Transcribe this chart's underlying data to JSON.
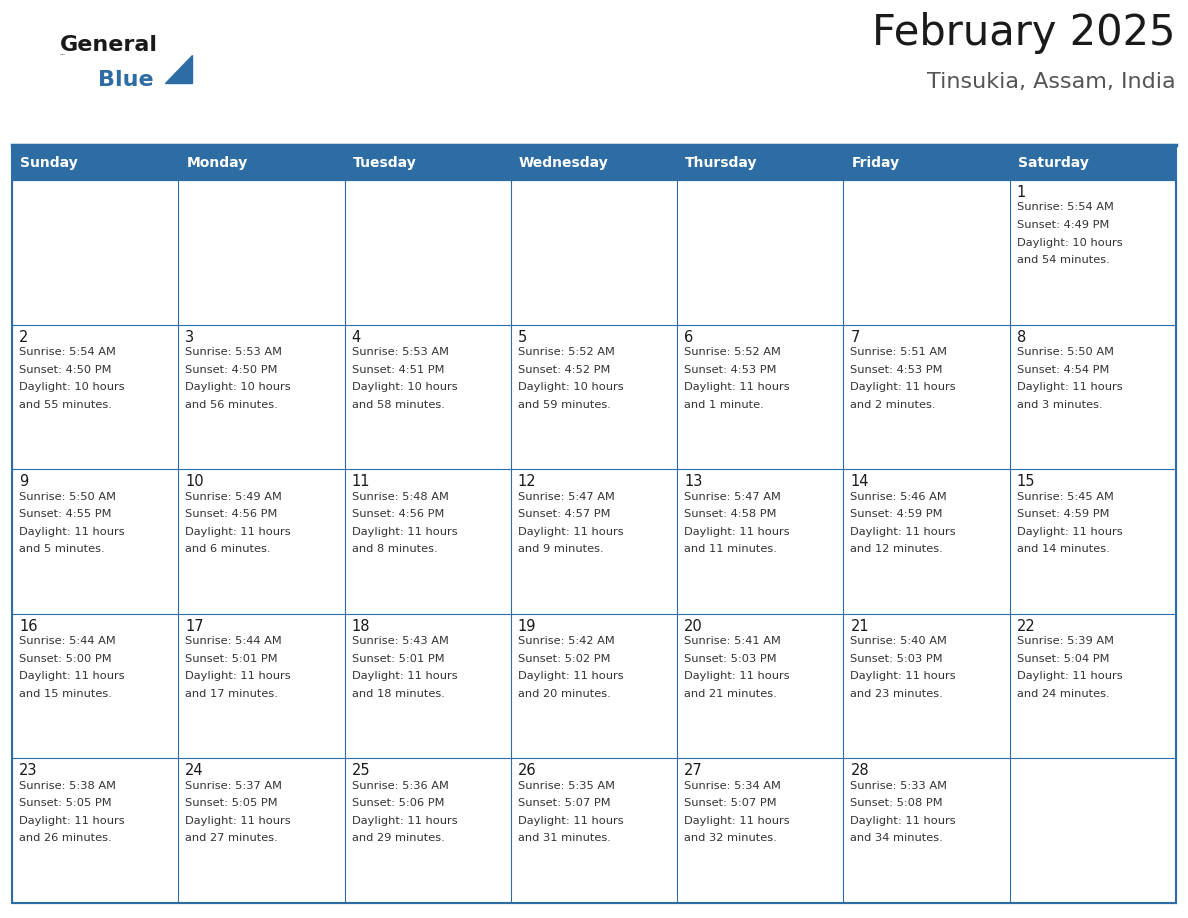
{
  "title": "February 2025",
  "subtitle": "Tinsukia, Assam, India",
  "header_color": "#2e6da4",
  "header_text_color": "#ffffff",
  "border_color": "#2e6da4",
  "text_color": "#333333",
  "day_number_color": "#1a1a1a",
  "cell_alt_color": "#f0f4f8",
  "day_headers": [
    "Sunday",
    "Monday",
    "Tuesday",
    "Wednesday",
    "Thursday",
    "Friday",
    "Saturday"
  ],
  "days": [
    {
      "day": 1,
      "col": 6,
      "row": 0,
      "sunrise": "5:54 AM",
      "sunset": "4:49 PM",
      "daylight_line1": "Daylight: 10 hours",
      "daylight_line2": "and 54 minutes."
    },
    {
      "day": 2,
      "col": 0,
      "row": 1,
      "sunrise": "5:54 AM",
      "sunset": "4:50 PM",
      "daylight_line1": "Daylight: 10 hours",
      "daylight_line2": "and 55 minutes."
    },
    {
      "day": 3,
      "col": 1,
      "row": 1,
      "sunrise": "5:53 AM",
      "sunset": "4:50 PM",
      "daylight_line1": "Daylight: 10 hours",
      "daylight_line2": "and 56 minutes."
    },
    {
      "day": 4,
      "col": 2,
      "row": 1,
      "sunrise": "5:53 AM",
      "sunset": "4:51 PM",
      "daylight_line1": "Daylight: 10 hours",
      "daylight_line2": "and 58 minutes."
    },
    {
      "day": 5,
      "col": 3,
      "row": 1,
      "sunrise": "5:52 AM",
      "sunset": "4:52 PM",
      "daylight_line1": "Daylight: 10 hours",
      "daylight_line2": "and 59 minutes."
    },
    {
      "day": 6,
      "col": 4,
      "row": 1,
      "sunrise": "5:52 AM",
      "sunset": "4:53 PM",
      "daylight_line1": "Daylight: 11 hours",
      "daylight_line2": "and 1 minute."
    },
    {
      "day": 7,
      "col": 5,
      "row": 1,
      "sunrise": "5:51 AM",
      "sunset": "4:53 PM",
      "daylight_line1": "Daylight: 11 hours",
      "daylight_line2": "and 2 minutes."
    },
    {
      "day": 8,
      "col": 6,
      "row": 1,
      "sunrise": "5:50 AM",
      "sunset": "4:54 PM",
      "daylight_line1": "Daylight: 11 hours",
      "daylight_line2": "and 3 minutes."
    },
    {
      "day": 9,
      "col": 0,
      "row": 2,
      "sunrise": "5:50 AM",
      "sunset": "4:55 PM",
      "daylight_line1": "Daylight: 11 hours",
      "daylight_line2": "and 5 minutes."
    },
    {
      "day": 10,
      "col": 1,
      "row": 2,
      "sunrise": "5:49 AM",
      "sunset": "4:56 PM",
      "daylight_line1": "Daylight: 11 hours",
      "daylight_line2": "and 6 minutes."
    },
    {
      "day": 11,
      "col": 2,
      "row": 2,
      "sunrise": "5:48 AM",
      "sunset": "4:56 PM",
      "daylight_line1": "Daylight: 11 hours",
      "daylight_line2": "and 8 minutes."
    },
    {
      "day": 12,
      "col": 3,
      "row": 2,
      "sunrise": "5:47 AM",
      "sunset": "4:57 PM",
      "daylight_line1": "Daylight: 11 hours",
      "daylight_line2": "and 9 minutes."
    },
    {
      "day": 13,
      "col": 4,
      "row": 2,
      "sunrise": "5:47 AM",
      "sunset": "4:58 PM",
      "daylight_line1": "Daylight: 11 hours",
      "daylight_line2": "and 11 minutes."
    },
    {
      "day": 14,
      "col": 5,
      "row": 2,
      "sunrise": "5:46 AM",
      "sunset": "4:59 PM",
      "daylight_line1": "Daylight: 11 hours",
      "daylight_line2": "and 12 minutes."
    },
    {
      "day": 15,
      "col": 6,
      "row": 2,
      "sunrise": "5:45 AM",
      "sunset": "4:59 PM",
      "daylight_line1": "Daylight: 11 hours",
      "daylight_line2": "and 14 minutes."
    },
    {
      "day": 16,
      "col": 0,
      "row": 3,
      "sunrise": "5:44 AM",
      "sunset": "5:00 PM",
      "daylight_line1": "Daylight: 11 hours",
      "daylight_line2": "and 15 minutes."
    },
    {
      "day": 17,
      "col": 1,
      "row": 3,
      "sunrise": "5:44 AM",
      "sunset": "5:01 PM",
      "daylight_line1": "Daylight: 11 hours",
      "daylight_line2": "and 17 minutes."
    },
    {
      "day": 18,
      "col": 2,
      "row": 3,
      "sunrise": "5:43 AM",
      "sunset": "5:01 PM",
      "daylight_line1": "Daylight: 11 hours",
      "daylight_line2": "and 18 minutes."
    },
    {
      "day": 19,
      "col": 3,
      "row": 3,
      "sunrise": "5:42 AM",
      "sunset": "5:02 PM",
      "daylight_line1": "Daylight: 11 hours",
      "daylight_line2": "and 20 minutes."
    },
    {
      "day": 20,
      "col": 4,
      "row": 3,
      "sunrise": "5:41 AM",
      "sunset": "5:03 PM",
      "daylight_line1": "Daylight: 11 hours",
      "daylight_line2": "and 21 minutes."
    },
    {
      "day": 21,
      "col": 5,
      "row": 3,
      "sunrise": "5:40 AM",
      "sunset": "5:03 PM",
      "daylight_line1": "Daylight: 11 hours",
      "daylight_line2": "and 23 minutes."
    },
    {
      "day": 22,
      "col": 6,
      "row": 3,
      "sunrise": "5:39 AM",
      "sunset": "5:04 PM",
      "daylight_line1": "Daylight: 11 hours",
      "daylight_line2": "and 24 minutes."
    },
    {
      "day": 23,
      "col": 0,
      "row": 4,
      "sunrise": "5:38 AM",
      "sunset": "5:05 PM",
      "daylight_line1": "Daylight: 11 hours",
      "daylight_line2": "and 26 minutes."
    },
    {
      "day": 24,
      "col": 1,
      "row": 4,
      "sunrise": "5:37 AM",
      "sunset": "5:05 PM",
      "daylight_line1": "Daylight: 11 hours",
      "daylight_line2": "and 27 minutes."
    },
    {
      "day": 25,
      "col": 2,
      "row": 4,
      "sunrise": "5:36 AM",
      "sunset": "5:06 PM",
      "daylight_line1": "Daylight: 11 hours",
      "daylight_line2": "and 29 minutes."
    },
    {
      "day": 26,
      "col": 3,
      "row": 4,
      "sunrise": "5:35 AM",
      "sunset": "5:07 PM",
      "daylight_line1": "Daylight: 11 hours",
      "daylight_line2": "and 31 minutes."
    },
    {
      "day": 27,
      "col": 4,
      "row": 4,
      "sunrise": "5:34 AM",
      "sunset": "5:07 PM",
      "daylight_line1": "Daylight: 11 hours",
      "daylight_line2": "and 32 minutes."
    },
    {
      "day": 28,
      "col": 5,
      "row": 4,
      "sunrise": "5:33 AM",
      "sunset": "5:08 PM",
      "daylight_line1": "Daylight: 11 hours",
      "daylight_line2": "and 34 minutes."
    }
  ],
  "num_rows": 5,
  "num_cols": 7,
  "figsize": [
    11.88,
    9.18
  ],
  "dpi": 100
}
